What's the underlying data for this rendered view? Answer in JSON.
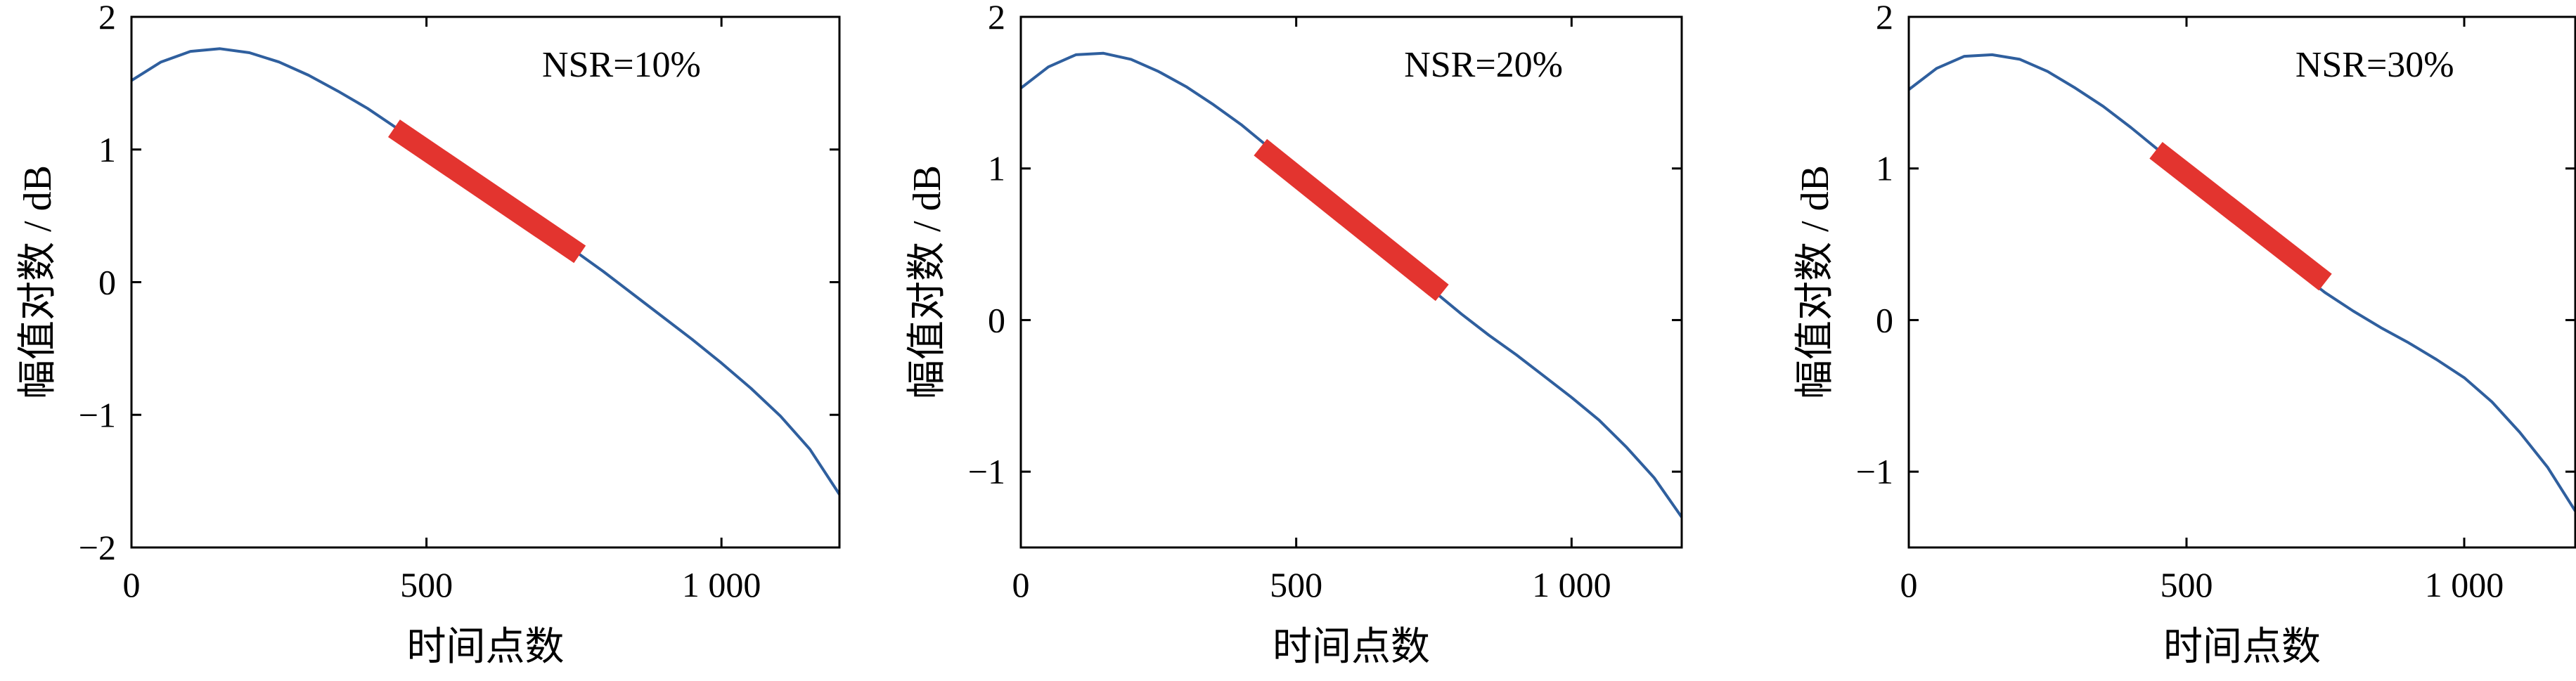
{
  "colors": {
    "curve": "#2f5f9e",
    "highlight": "#e3342f",
    "axis": "#000000"
  },
  "chart_data": [
    {
      "type": "line",
      "annotation": "NSR=10%",
      "xlabel": "时间点数",
      "ylabel": "幅值对数 / dB",
      "xlim": [
        0,
        1200
      ],
      "ylim": [
        -2,
        2
      ],
      "xticks": [
        0,
        500,
        1000
      ],
      "xtick_labels": [
        "0",
        "500",
        "1 000"
      ],
      "yticks": [
        -2,
        -1,
        0,
        1,
        2
      ],
      "ytick_labels": [
        "−2",
        "−1",
        "0",
        "1",
        "2"
      ],
      "series": [
        {
          "x": [
            0,
            50,
            100,
            150,
            200,
            250,
            300,
            350,
            400,
            450,
            500,
            550,
            600,
            650,
            700,
            750,
            800,
            850,
            900,
            950,
            1000,
            1050,
            1100,
            1150,
            1200
          ],
          "y": [
            1.52,
            1.66,
            1.74,
            1.76,
            1.73,
            1.66,
            1.56,
            1.44,
            1.31,
            1.16,
            1.02,
            0.87,
            0.72,
            0.57,
            0.41,
            0.24,
            0.08,
            -0.09,
            -0.26,
            -0.43,
            -0.61,
            -0.8,
            -1.01,
            -1.26,
            -1.6
          ]
        }
      ],
      "highlight": {
        "x_start": 445,
        "x_end": 760,
        "y_start": 1.16,
        "y_end": 0.21
      }
    },
    {
      "type": "line",
      "annotation": "NSR=20%",
      "xlabel": "时间点数",
      "ylabel": "幅值对数 / dB",
      "xlim": [
        0,
        1200
      ],
      "ylim": [
        -1.5,
        2
      ],
      "xticks": [
        0,
        500,
        1000
      ],
      "xtick_labels": [
        "0",
        "500",
        "1 000"
      ],
      "yticks": [
        -1,
        0,
        1,
        2
      ],
      "ytick_labels": [
        "−1",
        "0",
        "1",
        "2"
      ],
      "series": [
        {
          "x": [
            0,
            50,
            100,
            150,
            200,
            250,
            300,
            350,
            400,
            450,
            500,
            550,
            600,
            650,
            700,
            750,
            800,
            850,
            900,
            950,
            1000,
            1050,
            1100,
            1150,
            1200
          ],
          "y": [
            1.53,
            1.67,
            1.75,
            1.76,
            1.72,
            1.64,
            1.54,
            1.42,
            1.29,
            1.14,
            0.99,
            0.84,
            0.68,
            0.52,
            0.36,
            0.19,
            0.04,
            -0.1,
            -0.23,
            -0.37,
            -0.51,
            -0.66,
            -0.84,
            -1.04,
            -1.3
          ]
        }
      ],
      "highlight": {
        "x_start": 435,
        "x_end": 765,
        "y_start": 1.14,
        "y_end": 0.18
      }
    },
    {
      "type": "line",
      "annotation": "NSR=30%",
      "xlabel": "时间点数",
      "ylabel": "幅值对数 / dB",
      "xlim": [
        0,
        1200
      ],
      "ylim": [
        -1.5,
        2
      ],
      "xticks": [
        0,
        500,
        1000
      ],
      "xtick_labels": [
        "0",
        "500",
        "1 000"
      ],
      "yticks": [
        -1,
        0,
        1,
        2
      ],
      "ytick_labels": [
        "−1",
        "0",
        "1",
        "2"
      ],
      "series": [
        {
          "x": [
            0,
            50,
            100,
            150,
            200,
            250,
            300,
            350,
            400,
            450,
            500,
            550,
            600,
            650,
            700,
            750,
            800,
            850,
            900,
            950,
            1000,
            1050,
            1100,
            1150,
            1200
          ],
          "y": [
            1.52,
            1.66,
            1.74,
            1.75,
            1.72,
            1.64,
            1.53,
            1.41,
            1.27,
            1.12,
            0.96,
            0.8,
            0.64,
            0.47,
            0.32,
            0.18,
            0.06,
            -0.05,
            -0.15,
            -0.26,
            -0.38,
            -0.54,
            -0.74,
            -0.97,
            -1.26
          ]
        }
      ],
      "highlight": {
        "x_start": 445,
        "x_end": 750,
        "y_start": 1.12,
        "y_end": 0.25
      }
    }
  ]
}
